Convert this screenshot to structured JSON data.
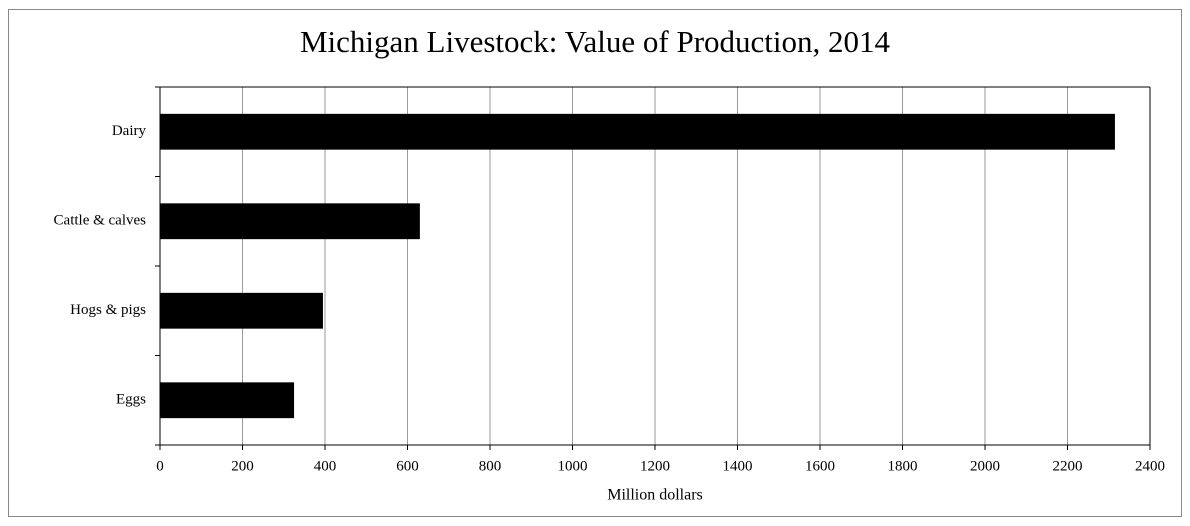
{
  "chart_data": {
    "type": "bar",
    "orientation": "horizontal",
    "title": "Michigan Livestock: Value of Production, 2014",
    "xlabel": "Million dollars",
    "categories": [
      "Dairy",
      "Cattle & calves",
      "Hogs & pigs",
      "Eggs"
    ],
    "values": [
      2315,
      630,
      395,
      325
    ],
    "color": "#000000",
    "xlim": [
      0,
      2400
    ],
    "xticks": [
      0,
      200,
      400,
      600,
      800,
      1000,
      1200,
      1400,
      1600,
      1800,
      2000,
      2200,
      2400
    ],
    "grid": true
  }
}
